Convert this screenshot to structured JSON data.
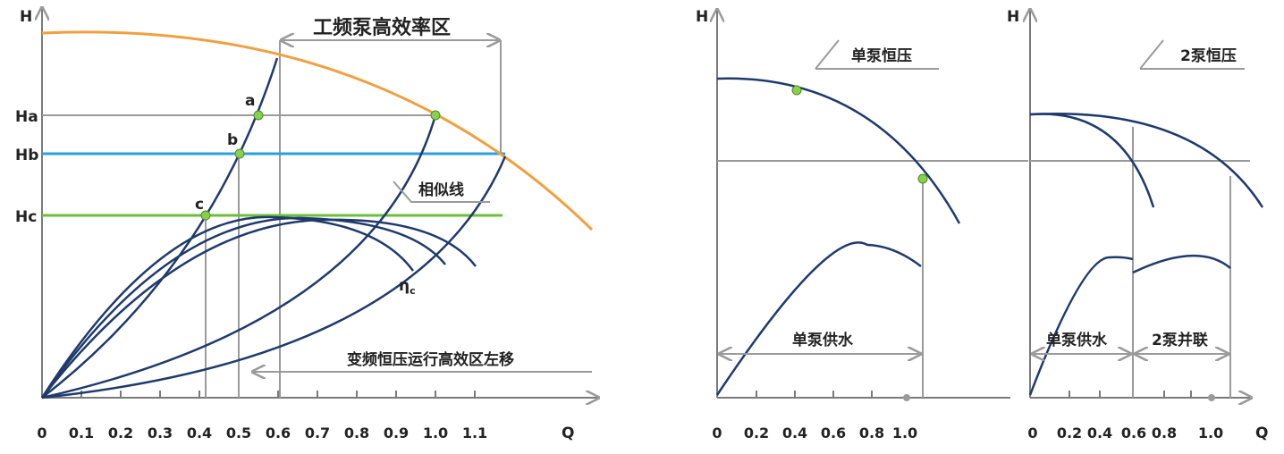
{
  "colors": {
    "curve": "#1f3a6b",
    "orange": "#f0a040",
    "blue": "#2aa0e0",
    "green": "#6cbf3a",
    "grid": "#9a9a9a",
    "axis": "#7a7a7a",
    "dot": "#8bd04a"
  },
  "left_chart": {
    "y_axis": "H",
    "x_axis": "Q",
    "x_ticks": [
      "0",
      "0.1",
      "0.2",
      "0.3",
      "0.4",
      "0.5",
      "0.6",
      "0.7",
      "0.8",
      "0.9",
      "1.0",
      "1.1"
    ],
    "h_labels": {
      "ha": "Ha",
      "hb": "Hb",
      "hc": "Hc"
    },
    "points": {
      "a": "a",
      "b": "b",
      "c": "c"
    },
    "high_eff_zone": "工频泵高效率区",
    "similar_line": "相似线",
    "eta": "η",
    "eta_sub": "c",
    "shift_note": "变频恒压运行高效区左移"
  },
  "mid_chart": {
    "y_axis": "H",
    "title": "单泵恒压",
    "supply": "单泵供水",
    "x_ticks": [
      "0",
      "0.2",
      "0.4",
      "0.6",
      "0.8",
      "1.0"
    ]
  },
  "right_chart": {
    "y_axis": "H",
    "x_axis": "Q",
    "title": "2泵恒压",
    "single_supply": "单泵供水",
    "parallel": "2泵并联",
    "x_ticks": [
      "0",
      "0.2",
      "0.4",
      "0.6",
      "0.8",
      "1.0"
    ]
  }
}
